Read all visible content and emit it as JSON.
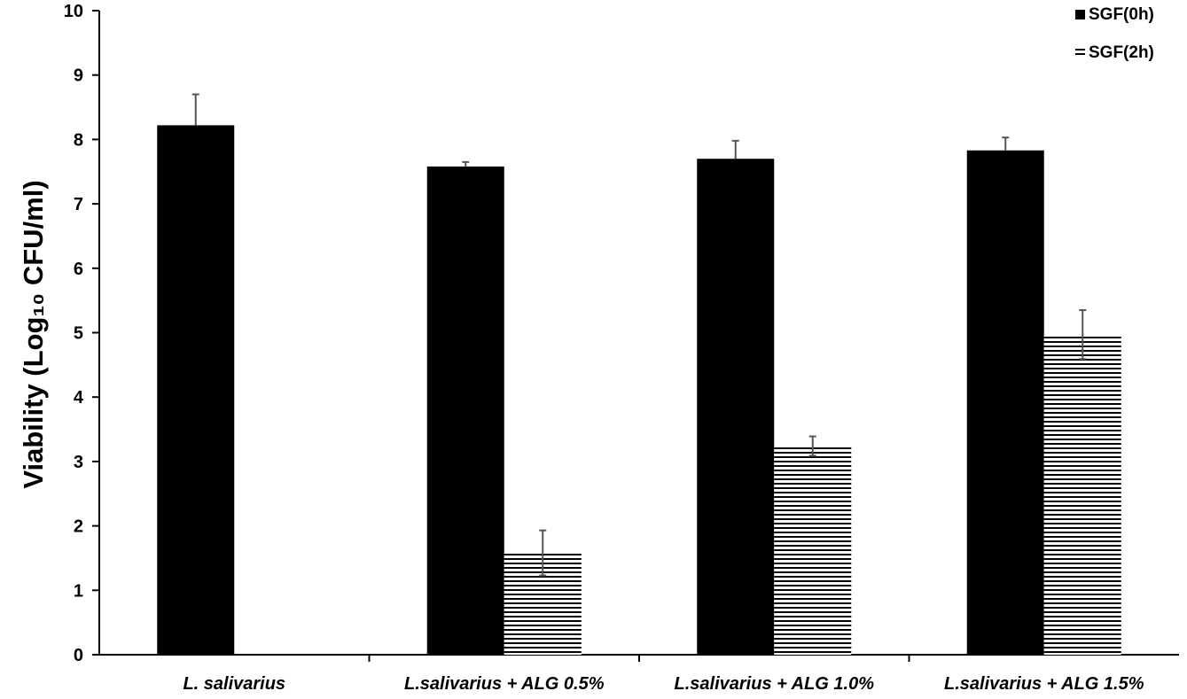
{
  "chart_data": {
    "type": "bar",
    "title": "",
    "xlabel": "",
    "ylabel": "Viability (Log₁₀ CFU/ml)",
    "ylim": [
      0,
      10
    ],
    "yticks": [
      0,
      1,
      2,
      3,
      4,
      5,
      6,
      7,
      8,
      9,
      10
    ],
    "grid": false,
    "legend_position": "top-right",
    "categories": [
      "L. salivarius",
      "L.salivarius + ALG 0.5%",
      "L.salivarius + ALG 1.0%",
      "L.salivarius + ALG 1.5%"
    ],
    "series": [
      {
        "name": "SGF(0h)",
        "fill": "solid",
        "color": "#000000",
        "values": [
          8.22,
          7.58,
          7.7,
          7.83
        ],
        "errors": [
          0.48,
          0.07,
          0.28,
          0.2
        ]
      },
      {
        "name": "SGF(2h)",
        "fill": "horizontal-lines",
        "color": "#000000",
        "values": [
          null,
          1.58,
          3.24,
          4.97
        ],
        "errors": [
          null,
          0.35,
          0.15,
          0.38
        ]
      }
    ]
  }
}
